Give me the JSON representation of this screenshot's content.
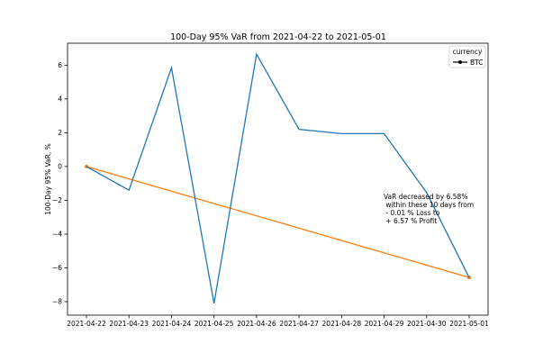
{
  "chart_data": {
    "type": "line",
    "title": "100-Day 95% VaR from 2021-04-22 to 2021-05-01",
    "xlabel": "",
    "ylabel": "100-Day 95% VaR, %",
    "categories": [
      "2021-04-22",
      "2021-04-23",
      "2021-04-24",
      "2021-04-25",
      "2021-04-26",
      "2021-04-27",
      "2021-04-28",
      "2021-04-29",
      "2021-04-30",
      "2021-05-01"
    ],
    "ylim": [
      -8.8,
      7.3
    ],
    "yticks": [
      -8,
      -6,
      -4,
      -2,
      0,
      2,
      4,
      6
    ],
    "ytick_labels": [
      "−8",
      "−6",
      "−4",
      "−2",
      "0",
      "2",
      "4",
      "6"
    ],
    "grid": false,
    "legend_position": "top-right",
    "legend_title": "currency",
    "series": [
      {
        "name": "BTC",
        "color": "#1f77b4",
        "values": [
          0.0,
          -1.4,
          5.85,
          -8.1,
          6.65,
          2.2,
          1.95,
          1.95,
          -1.55,
          -6.57
        ]
      }
    ],
    "trend_line": {
      "color": "#ff7f0e",
      "from": {
        "x": "2021-04-22",
        "y": 0.0
      },
      "to": {
        "x": "2021-05-01",
        "y": -6.57
      }
    },
    "annotation": {
      "lines": [
        "VaR decreased by 6.58%",
        " within these 10 days from",
        " - 0.01 % Loss to",
        " + 6.57 % Profit"
      ]
    }
  }
}
